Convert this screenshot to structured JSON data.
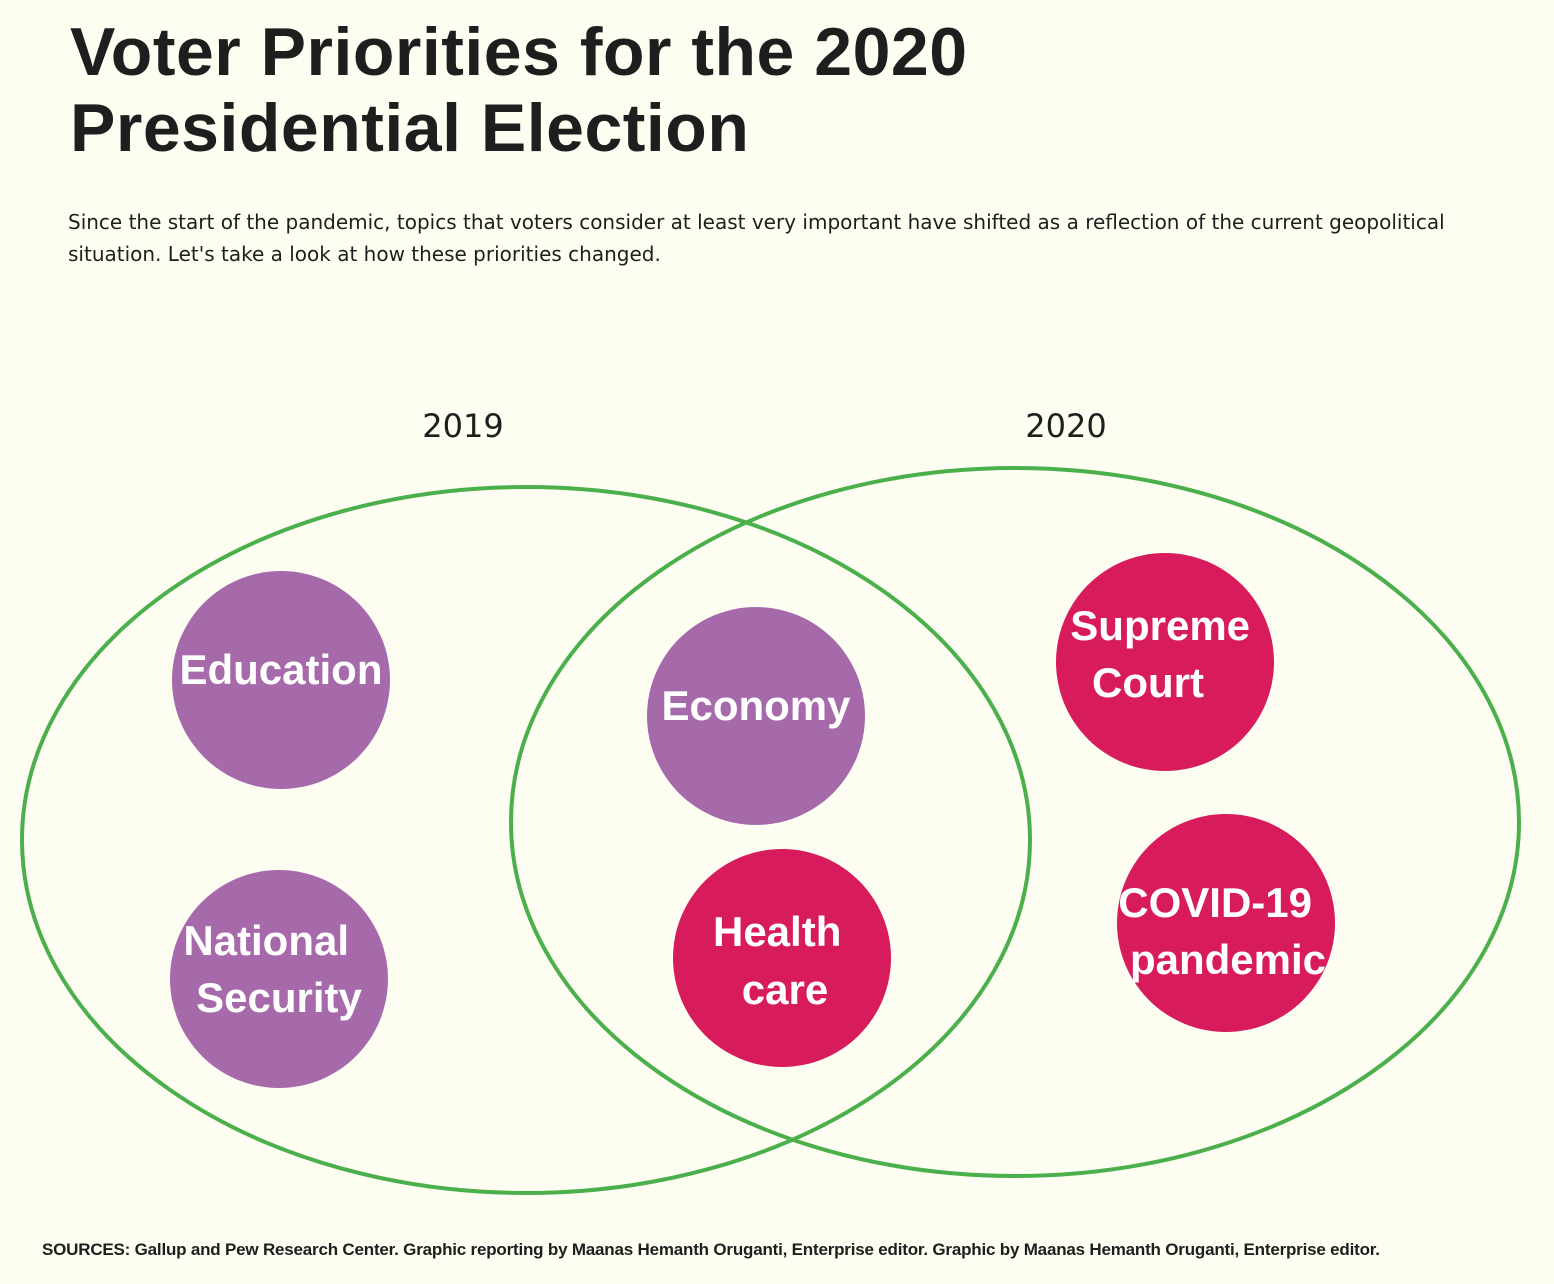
{
  "title": "Voter Priorities for the 2020 Presidential Election",
  "subtitle": "Since the start of the pandemic, topics that voters consider at least very important have shifted as a reflection of the current geopolitical situation. Let's take a look at how these priorities changed.",
  "sets": {
    "left": {
      "label": "2019"
    },
    "right": {
      "label": "2020"
    }
  },
  "topics": [
    {
      "id": "education",
      "lines": [
        "Education"
      ],
      "group": "2019 only",
      "color": "#a66aab"
    },
    {
      "id": "national-security",
      "lines": [
        "National",
        "Security"
      ],
      "group": "2019 only",
      "color": "#a66aab"
    },
    {
      "id": "economy",
      "lines": [
        "Economy"
      ],
      "group": "both",
      "color": "#a66aab"
    },
    {
      "id": "health-care",
      "lines": [
        "Health",
        "care"
      ],
      "group": "both",
      "color": "#d81b5d"
    },
    {
      "id": "supreme-court",
      "lines": [
        "Supreme",
        "Court"
      ],
      "group": "2020 only",
      "color": "#d81b5d"
    },
    {
      "id": "covid-19-pandemic",
      "lines": [
        "COVID-19",
        "pandemic"
      ],
      "group": "2020 only",
      "color": "#d81b5d"
    }
  ],
  "colors": {
    "background": "#fdfdf2",
    "ring": "#4bb04b",
    "purple": "#a66aab",
    "magenta": "#d81b5d",
    "text": "#1e1e1e"
  },
  "sources": "SOURCES: Gallup and Pew Research Center. Graphic reporting by Maanas Hemanth Oruganti, Enterprise editor. Graphic by Maanas Hemanth Oruganti, Enterprise editor."
}
